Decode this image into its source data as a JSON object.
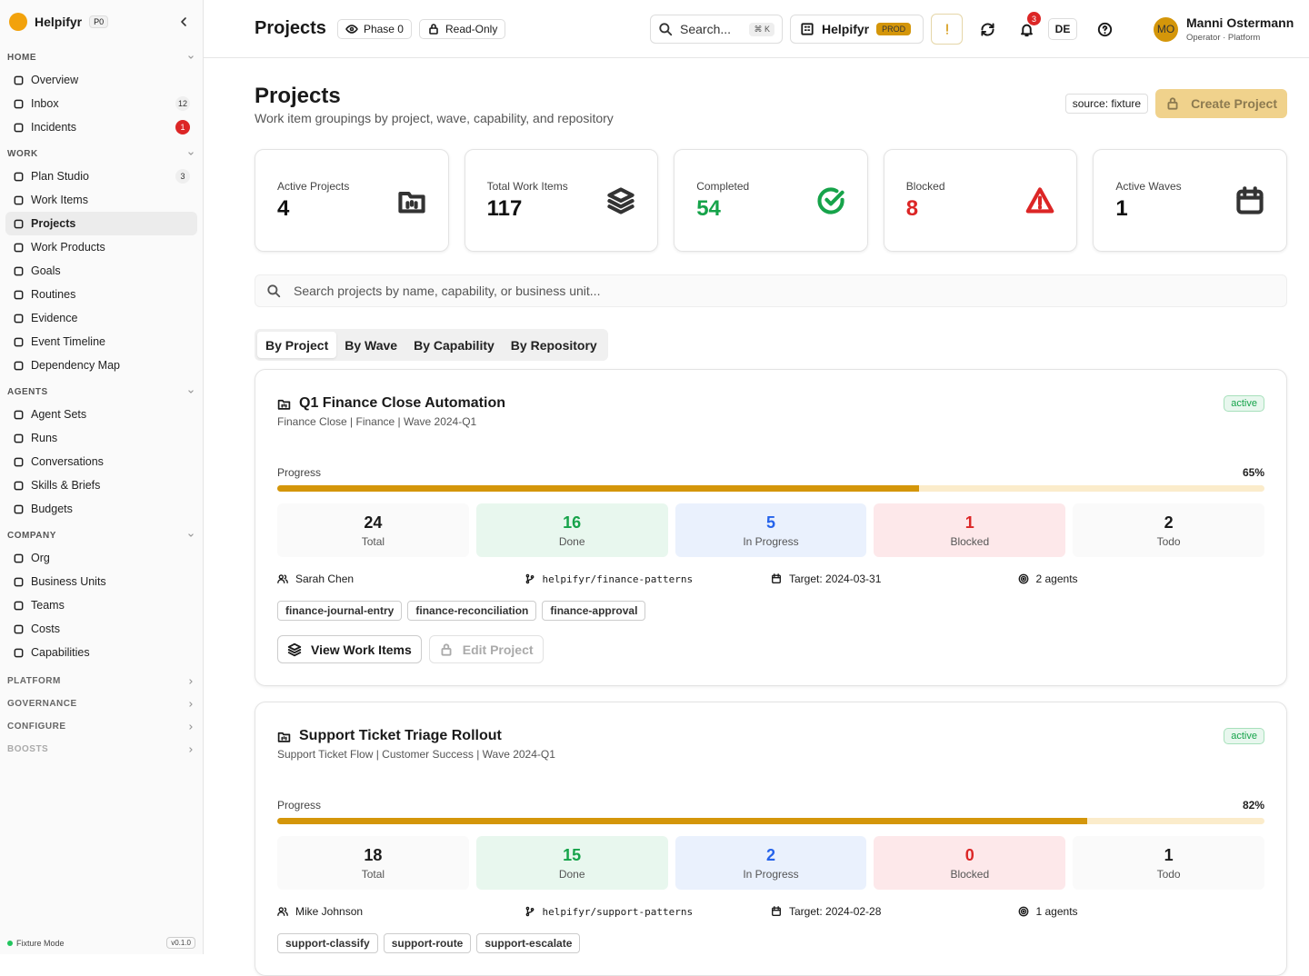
{
  "sidebar": {
    "brand": "Helpifyr",
    "phase_badge": "P0",
    "sections": [
      {
        "title": "HOME",
        "items": [
          {
            "label": "Overview"
          },
          {
            "label": "Inbox",
            "count": 12
          },
          {
            "label": "Incidents",
            "count": 1,
            "alert": true
          }
        ]
      },
      {
        "title": "WORK",
        "items": [
          {
            "label": "Plan Studio",
            "count": 3
          },
          {
            "label": "Work Items"
          },
          {
            "label": "Projects",
            "active": true
          },
          {
            "label": "Work Products"
          },
          {
            "label": "Goals"
          },
          {
            "label": "Routines"
          },
          {
            "label": "Evidence"
          },
          {
            "label": "Event Timeline"
          },
          {
            "label": "Dependency Map"
          }
        ]
      },
      {
        "title": "AGENTS",
        "items": [
          {
            "label": "Agent Sets"
          },
          {
            "label": "Runs"
          },
          {
            "label": "Conversations"
          },
          {
            "label": "Skills & Briefs"
          },
          {
            "label": "Budgets"
          }
        ]
      },
      {
        "title": "COMPANY",
        "items": [
          {
            "label": "Org"
          },
          {
            "label": "Business Units"
          },
          {
            "label": "Teams"
          },
          {
            "label": "Costs"
          },
          {
            "label": "Capabilities"
          }
        ]
      }
    ],
    "collapsed_sections": [
      "PLATFORM",
      "GOVERNANCE",
      "CONFIGURE",
      "BOOSTS"
    ],
    "footer": {
      "mode": "Fixture Mode",
      "version": "v0.1.0"
    }
  },
  "topbar": {
    "title": "Projects",
    "phase": "Phase 0",
    "mode": "Read-Only",
    "search": "Search...",
    "shortcut_key": "K",
    "org": "Helpifyr",
    "env": "PROD",
    "notifications": 3,
    "language": "DE",
    "user": {
      "initials": "MO",
      "name": "Manni Ostermann",
      "role": "Operator · Platform"
    }
  },
  "header": {
    "title": "Projects",
    "subtitle": "Work item groupings by project, wave, capability, and repository",
    "source": "source: fixture",
    "create_button": "Create Project"
  },
  "stats": [
    {
      "label": "Active Projects",
      "value": 4,
      "color": "#111111"
    },
    {
      "label": "Total Work Items",
      "value": 117,
      "color": "#111111"
    },
    {
      "label": "Completed",
      "value": 54,
      "color": "#16a34a"
    },
    {
      "label": "Blocked",
      "value": 8,
      "color": "#dc2626"
    },
    {
      "label": "Active Waves",
      "value": 1,
      "color": "#111111"
    }
  ],
  "search_placeholder": "Search projects by name, capability, or business unit...",
  "tabs": {
    "items": [
      "By Project",
      "By Wave",
      "By Capability",
      "By Repository"
    ],
    "active": 0
  },
  "projects": [
    {
      "name": "Q1 Finance Close Automation",
      "meta": "Finance Close | Finance | Wave 2024-Q1",
      "status": "active",
      "progress_title": "Progress",
      "progress": 65,
      "progress_label": "65%",
      "counts": [
        {
          "value": 24,
          "label": "Total"
        },
        {
          "value": 16,
          "label": "Done"
        },
        {
          "value": 5,
          "label": "In Progress"
        },
        {
          "value": 1,
          "label": "Blocked"
        },
        {
          "value": 2,
          "label": "Todo"
        }
      ],
      "owner": "Sarah Chen",
      "repo": "helpifyr/finance-patterns",
      "target": "Target: 2024-03-31",
      "agents": "2 agents",
      "tags": [
        "finance-journal-entry",
        "finance-reconciliation",
        "finance-approval"
      ],
      "actions": {
        "view": "View Work Items",
        "edit": "Edit Project"
      }
    },
    {
      "name": "Support Ticket Triage Rollout",
      "meta": "Support Ticket Flow | Customer Success | Wave 2024-Q1",
      "status": "active",
      "progress_title": "Progress",
      "progress": 82,
      "progress_label": "82%",
      "counts": [
        {
          "value": 18,
          "label": "Total"
        },
        {
          "value": 15,
          "label": "Done"
        },
        {
          "value": 2,
          "label": "In Progress"
        },
        {
          "value": 0,
          "label": "Blocked"
        },
        {
          "value": 1,
          "label": "Todo"
        }
      ],
      "owner": "Mike Johnson",
      "repo": "helpifyr/support-patterns",
      "target": "Target: 2024-02-28",
      "agents": "1 agents",
      "tags": [
        "support-classify",
        "support-route",
        "support-escalate"
      ]
    }
  ]
}
